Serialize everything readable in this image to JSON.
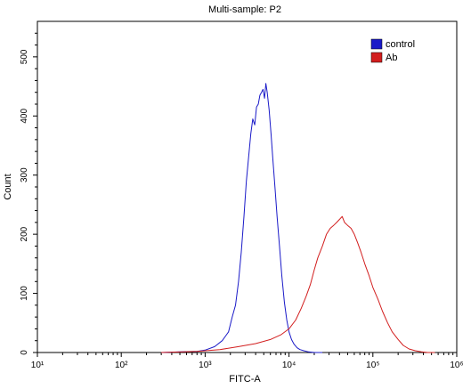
{
  "chart_data": {
    "type": "line",
    "title": "Multi-sample: P2",
    "xlabel": "FITC-A",
    "ylabel": "Count",
    "x_scale": "log",
    "xlim": [
      10,
      1000000
    ],
    "ylim": [
      0,
      560
    ],
    "x_ticks": [
      {
        "value": 10,
        "label": "10¹"
      },
      {
        "value": 100,
        "label": "10²"
      },
      {
        "value": 1000,
        "label": "10³"
      },
      {
        "value": 10000,
        "label": "10⁴"
      },
      {
        "value": 100000,
        "label": "10⁵"
      },
      {
        "value": 1000000,
        "label": "10⁶"
      }
    ],
    "y_ticks": [
      0,
      100,
      200,
      300,
      400,
      500
    ],
    "grid": false,
    "legend_position": "top-right",
    "series": [
      {
        "name": "control",
        "color": "#1a1ac8",
        "x": [
          300,
          500,
          800,
          1000,
          1300,
          1600,
          1900,
          2100,
          2300,
          2500,
          2700,
          2900,
          3100,
          3300,
          3500,
          3700,
          3900,
          4100,
          4300,
          4500,
          4700,
          4900,
          5100,
          5300,
          5500,
          5800,
          6100,
          6400,
          6800,
          7200,
          7700,
          8200,
          8800,
          9400,
          10000,
          10700,
          11500,
          12500,
          13500,
          15000,
          17000,
          20000,
          25000
        ],
        "y": [
          0,
          1,
          2,
          4,
          10,
          20,
          35,
          60,
          80,
          120,
          170,
          230,
          290,
          330,
          370,
          395,
          385,
          415,
          420,
          435,
          440,
          445,
          430,
          455,
          440,
          410,
          370,
          330,
          280,
          230,
          180,
          130,
          85,
          55,
          35,
          22,
          14,
          8,
          5,
          3,
          1,
          0,
          0
        ]
      },
      {
        "name": "Ab",
        "color": "#d21e1e",
        "x": [
          300,
          800,
          1500,
          2500,
          4000,
          6000,
          8000,
          10000,
          12000,
          14000,
          16000,
          18000,
          20000,
          22000,
          25000,
          28000,
          31000,
          34000,
          37000,
          40000,
          43000,
          46000,
          50000,
          55000,
          60000,
          66000,
          72000,
          80000,
          90000,
          100000,
          115000,
          130000,
          150000,
          170000,
          200000,
          230000,
          270000,
          320000,
          380000,
          450000,
          550000
        ],
        "y": [
          0,
          2,
          5,
          10,
          15,
          22,
          30,
          40,
          55,
          75,
          95,
          115,
          140,
          160,
          180,
          200,
          210,
          215,
          220,
          225,
          230,
          220,
          215,
          210,
          200,
          185,
          170,
          150,
          130,
          110,
          90,
          70,
          50,
          35,
          22,
          12,
          6,
          3,
          1,
          0,
          0
        ]
      }
    ]
  }
}
